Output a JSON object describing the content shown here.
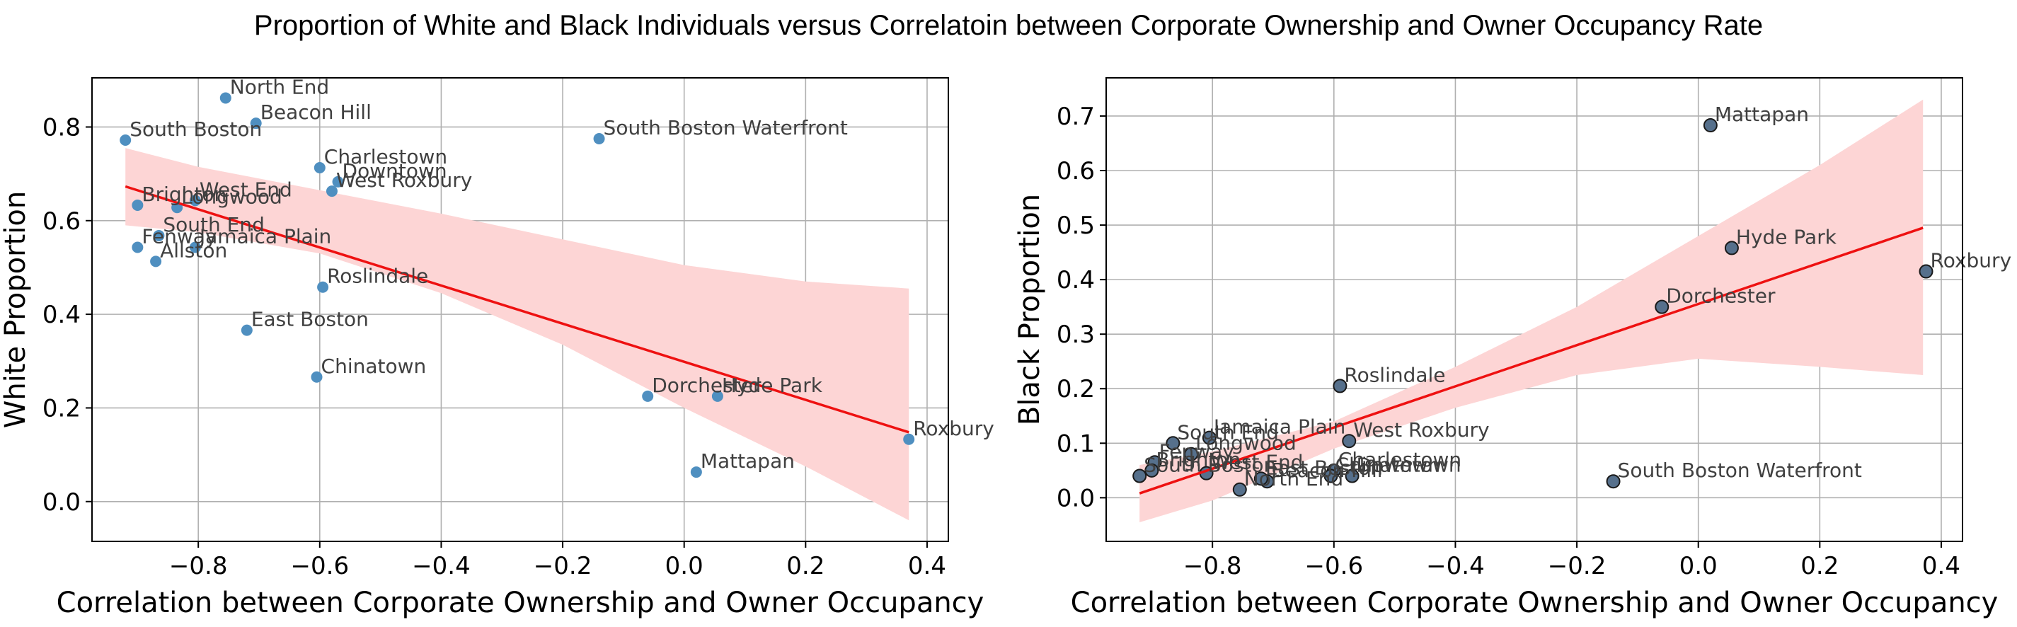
{
  "figure_title": "Proportion of White and Black Individuals versus Correlatoin between Corporate Ownership and Owner Occupancy Rate",
  "chart_data": [
    {
      "type": "scatter",
      "title": "",
      "xlabel": "Correlation between Corporate Ownership and Owner Occupancy",
      "ylabel": "White Proportion",
      "xlim": [
        -0.975,
        0.435
      ],
      "ylim": [
        -0.085,
        0.905
      ],
      "xticks": [
        -0.8,
        -0.6,
        -0.4,
        -0.2,
        0.0,
        0.2,
        0.4
      ],
      "xtick_labels": [
        "−0.8",
        "−0.6",
        "−0.4",
        "−0.2",
        "0.0",
        "0.2",
        "0.4"
      ],
      "yticks": [
        0.0,
        0.2,
        0.4,
        0.6,
        0.8
      ],
      "ytick_labels": [
        "0.0",
        "0.2",
        "0.4",
        "0.6",
        "0.8"
      ],
      "grid": true,
      "point_color": "#4f8fc0",
      "regression": {
        "x": [
          -0.92,
          0.37
        ],
        "y": [
          0.673,
          0.148
        ],
        "color": "#ee1111",
        "band_color": "#fdd5d5",
        "band_x": [
          -0.92,
          -0.8,
          -0.6,
          -0.4,
          -0.2,
          0.0,
          0.2,
          0.37
        ],
        "band_upper": [
          0.755,
          0.715,
          0.665,
          0.615,
          0.56,
          0.505,
          0.47,
          0.455
        ],
        "band_lower": [
          0.59,
          0.575,
          0.53,
          0.445,
          0.335,
          0.2,
          0.075,
          -0.04
        ]
      },
      "points": [
        {
          "label": "North End",
          "x": -0.755,
          "y": 0.862
        },
        {
          "label": "Beacon Hill",
          "x": -0.705,
          "y": 0.808
        },
        {
          "label": "South Boston",
          "x": -0.92,
          "y": 0.772
        },
        {
          "label": "South Boston Waterfront",
          "x": -0.14,
          "y": 0.775
        },
        {
          "label": "Charlestown",
          "x": -0.6,
          "y": 0.713
        },
        {
          "label": "Downtown",
          "x": -0.57,
          "y": 0.683
        },
        {
          "label": "West Roxbury",
          "x": -0.58,
          "y": 0.663
        },
        {
          "label": "West End",
          "x": -0.805,
          "y": 0.643
        },
        {
          "label": "Longwood",
          "x": -0.835,
          "y": 0.628
        },
        {
          "label": "Brighton",
          "x": -0.9,
          "y": 0.633
        },
        {
          "label": "South End",
          "x": -0.865,
          "y": 0.568
        },
        {
          "label": "Jamaica Plain",
          "x": -0.805,
          "y": 0.543
        },
        {
          "label": "Fenway",
          "x": -0.9,
          "y": 0.543
        },
        {
          "label": "Allston",
          "x": -0.87,
          "y": 0.513
        },
        {
          "label": "Roslindale",
          "x": -0.595,
          "y": 0.458
        },
        {
          "label": "East Boston",
          "x": -0.72,
          "y": 0.366
        },
        {
          "label": "Chinatown",
          "x": -0.605,
          "y": 0.266
        },
        {
          "label": "Dorchester",
          "x": -0.06,
          "y": 0.225
        },
        {
          "label": "Hyde Park",
          "x": 0.055,
          "y": 0.225
        },
        {
          "label": "Roxbury",
          "x": 0.37,
          "y": 0.133
        },
        {
          "label": "Mattapan",
          "x": 0.02,
          "y": 0.063
        }
      ]
    },
    {
      "type": "scatter",
      "title": "",
      "xlabel": "Correlation between Corporate Ownership and Owner Occupancy",
      "ylabel": "Black Proportion",
      "xlim": [
        -0.975,
        0.435
      ],
      "ylim": [
        -0.08,
        0.77
      ],
      "xticks": [
        -0.8,
        -0.6,
        -0.4,
        -0.2,
        0.0,
        0.2,
        0.4
      ],
      "xtick_labels": [
        "−0.8",
        "−0.6",
        "−0.4",
        "−0.2",
        "0.0",
        "0.2",
        "0.4"
      ],
      "yticks": [
        0.0,
        0.1,
        0.2,
        0.3,
        0.4,
        0.5,
        0.6,
        0.7
      ],
      "ytick_labels": [
        "0.0",
        "0.1",
        "0.2",
        "0.3",
        "0.4",
        "0.5",
        "0.6",
        "0.7"
      ],
      "grid": true,
      "point_color": "#56708c",
      "regression": {
        "x": [
          -0.92,
          0.37
        ],
        "y": [
          0.008,
          0.495
        ],
        "color": "#ee1111",
        "band_color": "#fdd5d5",
        "band_x": [
          -0.92,
          -0.8,
          -0.6,
          -0.4,
          -0.2,
          0.0,
          0.2,
          0.37
        ],
        "band_upper": [
          0.06,
          0.085,
          0.14,
          0.24,
          0.35,
          0.48,
          0.61,
          0.73
        ],
        "band_lower": [
          -0.045,
          -0.005,
          0.09,
          0.165,
          0.225,
          0.255,
          0.24,
          0.225
        ]
      },
      "points": [
        {
          "label": "Mattapan",
          "x": 0.02,
          "y": 0.683
        },
        {
          "label": "Hyde Park",
          "x": 0.055,
          "y": 0.458
        },
        {
          "label": "Roxbury",
          "x": 0.375,
          "y": 0.415
        },
        {
          "label": "Dorchester",
          "x": -0.06,
          "y": 0.35
        },
        {
          "label": "Roslindale",
          "x": -0.59,
          "y": 0.205
        },
        {
          "label": "Jamaica Plain",
          "x": -0.805,
          "y": 0.11
        },
        {
          "label": "West Roxbury",
          "x": -0.575,
          "y": 0.104
        },
        {
          "label": "South End",
          "x": -0.865,
          "y": 0.1
        },
        {
          "label": "Longwood",
          "x": -0.835,
          "y": 0.08
        },
        {
          "label": "Fenway",
          "x": -0.895,
          "y": 0.065
        },
        {
          "label": "Brighton",
          "x": -0.9,
          "y": 0.05
        },
        {
          "label": "South Boston",
          "x": -0.92,
          "y": 0.04
        },
        {
          "label": "West End",
          "x": -0.81,
          "y": 0.045
        },
        {
          "label": "Charlestown",
          "x": -0.6,
          "y": 0.05
        },
        {
          "label": "Downtown",
          "x": -0.57,
          "y": 0.04
        },
        {
          "label": "Beacon Hill",
          "x": -0.71,
          "y": 0.03
        },
        {
          "label": "East Boston",
          "x": -0.72,
          "y": 0.035
        },
        {
          "label": "Chinatown",
          "x": -0.605,
          "y": 0.04
        },
        {
          "label": "North End",
          "x": -0.755,
          "y": 0.015
        },
        {
          "label": "South Boston Waterfront",
          "x": -0.14,
          "y": 0.03
        }
      ]
    }
  ]
}
